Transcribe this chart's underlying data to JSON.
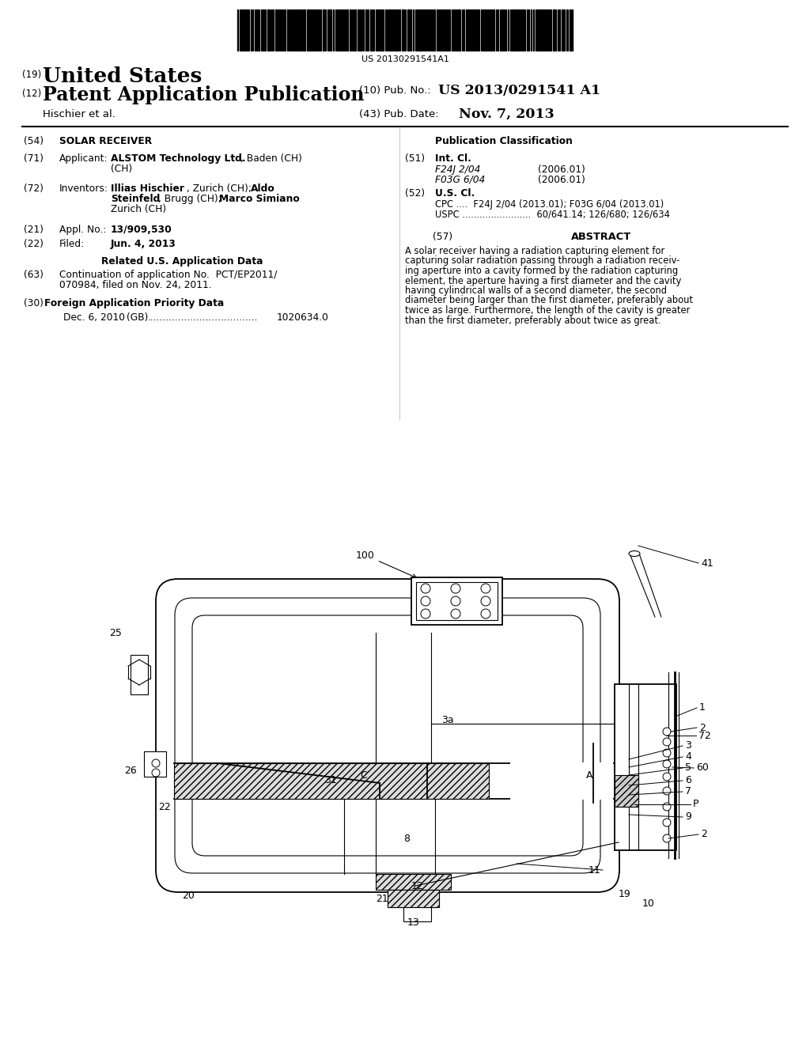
{
  "bg_color": "#ffffff",
  "barcode_text": "US 20130291541A1",
  "text_color": "#000000",
  "header": {
    "tag19": "(19)",
    "title19": "United States",
    "tag12": "(12)",
    "title12": "Patent Application Publication",
    "pub_no_tag": "(10) Pub. No.:",
    "pub_no": "US 2013/0291541 A1",
    "inventors": "Hischier et al.",
    "pub_date_tag": "(43) Pub. Date:",
    "pub_date": "Nov. 7, 2013"
  },
  "left_col": {
    "s54_tag": "(54)",
    "s54_title": "SOLAR RECEIVER",
    "s71_tag": "(71)",
    "s71_label": "Applicant:",
    "s71_company": "ALSTOM Technology Ltd.",
    "s71_loc": ", Baden (CH)",
    "s72_tag": "(72)",
    "s72_label": "Inventors:",
    "s72_inv1a": "Illias Hischier",
    "s72_inv1b": ", Zurich (CH); ",
    "s72_inv2a": "Aldo",
    "s72_inv2b": "Steinfeld",
    "s72_inv2c": ", Brugg (CH); ",
    "s72_inv3a": "Marco Simiano",
    "s72_inv3b": ",",
    "s72_inv4": "Zurich (CH)",
    "s21_tag": "(21)",
    "s21_label": "Appl. No.:",
    "s21_val": "13/909,530",
    "s22_tag": "(22)",
    "s22_label": "Filed:",
    "s22_val": "Jun. 4, 2013",
    "related_title": "Related U.S. Application Data",
    "s63_tag": "(63)",
    "s63_text1": "Continuation of application No.  PCT/EP2011/",
    "s63_text2": "070984, filed on Nov. 24, 2011.",
    "s30_tag": "(30)",
    "s30_title": "Foreign Application Priority Data",
    "s30_date": "Dec. 6, 2010",
    "s30_country": "(GB)",
    "s30_dots": "....................................",
    "s30_num": "1020634.0"
  },
  "right_col": {
    "pub_class": "Publication Classification",
    "s51_tag": "(51)",
    "s51_title": "Int. Cl.",
    "s51_c1": "F24J 2/04",
    "s51_y1": "(2006.01)",
    "s51_c2": "F03G 6/04",
    "s51_y2": "(2006.01)",
    "s52_tag": "(52)",
    "s52_title": "U.S. Cl.",
    "s52_cpc": "CPC ....  F24J 2/04 (2013.01); F03G 6/04 (2013.01)",
    "s52_uspc": "USPC ........................  60/641.14; 126/680; 126/634",
    "s57_tag": "(57)",
    "s57_title": "ABSTRACT",
    "abstract1": "A solar receiver having a radiation capturing element for",
    "abstract2": "capturing solar radiation passing through a radiation receiv-",
    "abstract3": "ing aperture into a cavity formed by the radiation capturing",
    "abstract4": "element, the aperture having a first diameter and the cavity",
    "abstract5": "having cylindrical walls of a second diameter, the second",
    "abstract6": "diameter being larger than the first diameter, preferably about",
    "abstract7": "twice as large. Furthermore, the length of the cavity is greater",
    "abstract8": "than the first diameter, preferably about twice as great."
  }
}
